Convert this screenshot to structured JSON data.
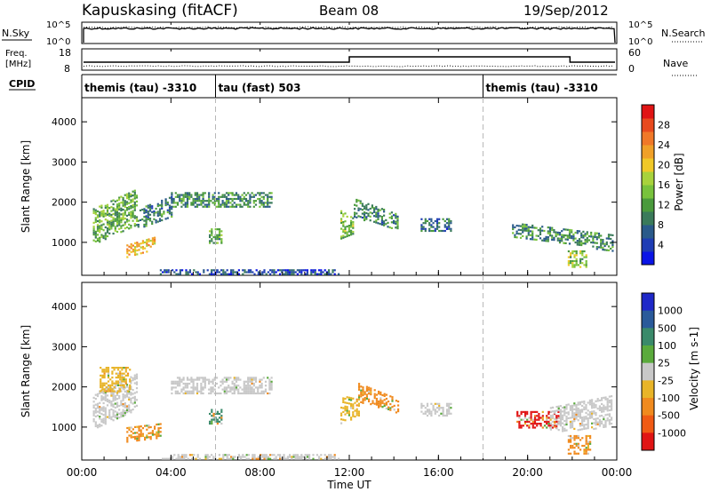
{
  "header": {
    "station": "Kapuskasing (fitACF)",
    "beam": "Beam 08",
    "date": "19/Sep/2012"
  },
  "noise_panel": {
    "left_label": "N.Sky",
    "left_ticks": [
      "10^5",
      "10^0"
    ],
    "right_label": "N.Search",
    "right_ticks": [
      "10^5",
      "10^0"
    ]
  },
  "freq_panel": {
    "left_label_top": "Freq.",
    "left_label_unit": "[MHz]",
    "left_ticks": [
      "18",
      "8"
    ],
    "right_label": "Nave",
    "right_ticks": [
      "60",
      "0"
    ]
  },
  "cpid_panel": {
    "label": "CPID",
    "segments": [
      {
        "name": "themis (tau) -3310",
        "start_hour": 0.0
      },
      {
        "name": "tau (fast) 503",
        "start_hour": 6.0
      },
      {
        "name": "themis (tau) -3310",
        "start_hour": 18.0
      }
    ]
  },
  "time_axis": {
    "label": "Time UT",
    "tick_labels": [
      "00:00",
      "04:00",
      "08:00",
      "12:00",
      "16:00",
      "20:00",
      "00:00"
    ],
    "tick_hours": [
      0,
      4,
      8,
      12,
      16,
      20,
      24
    ],
    "range_hours": [
      0,
      24
    ]
  },
  "chart_data": [
    {
      "type": "heatmap",
      "panel": "power",
      "ylabel": "Slant Range [km]",
      "ylim": [
        180,
        4600
      ],
      "yticks": [
        1000,
        2000,
        3000,
        4000
      ],
      "xlim_hours": [
        0,
        24
      ],
      "colorbar": {
        "label": "Power [dB]",
        "range": [
          0,
          32
        ],
        "tick_labels": [
          "4",
          "8",
          "12",
          "16",
          "20",
          "24",
          "28"
        ],
        "colors": [
          "#0a14e6",
          "#1e3cb4",
          "#2a5a8a",
          "#3a7a5a",
          "#4a9a3c",
          "#78c23c",
          "#a8d23c",
          "#f0c828",
          "#f0a028",
          "#f07828",
          "#e84a1e",
          "#e01414"
        ]
      },
      "echo_regions": [
        {
          "h": [
            0.5,
            2.5
          ],
          "r_start": [
            950,
            1850
          ],
          "r_end": [
            1450,
            2350
          ],
          "level": 12
        },
        {
          "h": [
            2.5,
            4.0
          ],
          "r_start": [
            1350,
            1850
          ],
          "r_end": [
            1650,
            2150
          ],
          "level": 8
        },
        {
          "h": [
            2.0,
            3.3
          ],
          "r_start": [
            650,
            950
          ],
          "r_end": [
            850,
            1150
          ],
          "level": 20
        },
        {
          "h": [
            4.0,
            8.5
          ],
          "r_start": [
            1900,
            2250
          ],
          "r_end": [
            1900,
            2250
          ],
          "level": 9
        },
        {
          "h": [
            5.7,
            6.3
          ],
          "r_start": [
            1000,
            1350
          ],
          "r_end": [
            1000,
            1350
          ],
          "level": 11
        },
        {
          "h": [
            11.6,
            12.2
          ],
          "r_start": [
            1100,
            1800
          ],
          "r_end": [
            1200,
            1600
          ],
          "level": 13
        },
        {
          "h": [
            12.2,
            14.2
          ],
          "r_start": [
            1650,
            2100
          ],
          "r_end": [
            1300,
            1700
          ],
          "level": 8
        },
        {
          "h": [
            15.2,
            16.6
          ],
          "r_start": [
            1300,
            1600
          ],
          "r_end": [
            1300,
            1600
          ],
          "level": 6
        },
        {
          "h": [
            19.3,
            23.8
          ],
          "r_start": [
            1150,
            1500
          ],
          "r_end": [
            800,
            1200
          ],
          "level": 9
        },
        {
          "h": [
            21.8,
            22.6
          ],
          "r_start": [
            400,
            800
          ],
          "r_end": [
            400,
            800
          ],
          "level": 14
        },
        {
          "h": [
            3.5,
            11.5
          ],
          "r_start": [
            200,
            330
          ],
          "r_end": [
            200,
            330
          ],
          "level": 4
        }
      ]
    },
    {
      "type": "heatmap",
      "panel": "velocity",
      "ylabel": "Slant Range [km]",
      "ylim": [
        180,
        4600
      ],
      "yticks": [
        1000,
        2000,
        3000,
        4000
      ],
      "xlim_hours": [
        0,
        24
      ],
      "colorbar": {
        "label": "Velocity [m s-1]",
        "tick_labels": [
          "1000",
          "500",
          "100",
          "25",
          "-25",
          "-100",
          "-500",
          "-1000"
        ],
        "colors": [
          "#1e28c8",
          "#2a5a9a",
          "#3a8a6a",
          "#5aaa3c",
          "#c8c8c8",
          "#e8b428",
          "#f08a1e",
          "#f05a14",
          "#e01414"
        ]
      },
      "echo_regions": [
        {
          "h": [
            0.5,
            2.5
          ],
          "r_start": [
            950,
            1850
          ],
          "r_end": [
            1450,
            2350
          ],
          "class": "ground_scatter"
        },
        {
          "h": [
            0.8,
            2.2
          ],
          "r_start": [
            1900,
            2500
          ],
          "r_end": [
            1900,
            2500
          ],
          "class": "-100"
        },
        {
          "h": [
            2.0,
            3.5
          ],
          "r_start": [
            650,
            1000
          ],
          "r_end": [
            750,
            1100
          ],
          "class": "-500"
        },
        {
          "h": [
            4.0,
            8.5
          ],
          "r_start": [
            1850,
            2250
          ],
          "r_end": [
            1850,
            2250
          ],
          "class": "ground_scatter"
        },
        {
          "h": [
            5.7,
            6.3
          ],
          "r_start": [
            1100,
            1450
          ],
          "r_end": [
            1100,
            1450
          ],
          "class": "100"
        },
        {
          "h": [
            11.6,
            12.4
          ],
          "r_start": [
            1100,
            1800
          ],
          "r_end": [
            1300,
            1700
          ],
          "class": "-100"
        },
        {
          "h": [
            12.4,
            14.2
          ],
          "r_start": [
            1650,
            2100
          ],
          "r_end": [
            1350,
            1700
          ],
          "class": "-500"
        },
        {
          "h": [
            15.2,
            16.6
          ],
          "r_start": [
            1300,
            1600
          ],
          "r_end": [
            1300,
            1600
          ],
          "class": "ground_scatter"
        },
        {
          "h": [
            19.5,
            21.5
          ],
          "r_start": [
            1000,
            1400
          ],
          "r_end": [
            1000,
            1400
          ],
          "class": "-1000"
        },
        {
          "h": [
            21.0,
            23.8
          ],
          "r_start": [
            900,
            1500
          ],
          "r_end": [
            1000,
            1800
          ],
          "class": "ground_scatter"
        },
        {
          "h": [
            21.8,
            22.8
          ],
          "r_start": [
            350,
            800
          ],
          "r_end": [
            350,
            800
          ],
          "class": "-500"
        },
        {
          "h": [
            3.5,
            11.5
          ],
          "r_start": [
            200,
            330
          ],
          "r_end": [
            200,
            330
          ],
          "class": "25"
        }
      ]
    }
  ]
}
